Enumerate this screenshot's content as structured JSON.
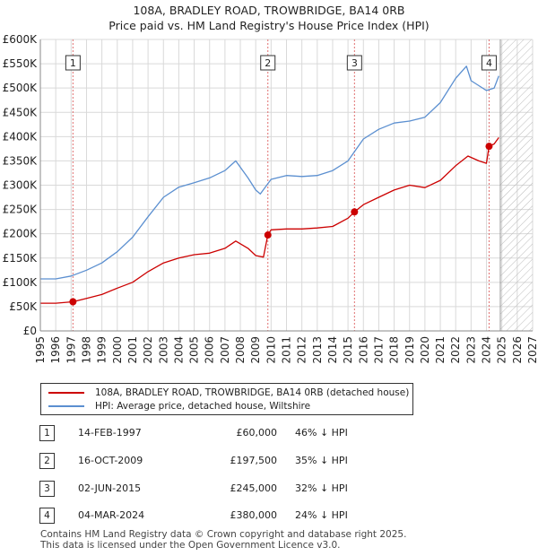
{
  "title": {
    "line1": "108A, BRADLEY ROAD, TROWBRIDGE, BA14 0RB",
    "line2": "Price paid vs. HM Land Registry's House Price Index (HPI)"
  },
  "chart_data": {
    "type": "line",
    "title": "108A, BRADLEY ROAD, TROWBRIDGE, BA14 0RB — Price paid vs. HM Land Registry's House Price Index (HPI)",
    "xlim": [
      1995,
      2027
    ],
    "ylim": [
      0,
      600000
    ],
    "x_ticks": [
      "1995",
      "1996",
      "1997",
      "1998",
      "1999",
      "2000",
      "2001",
      "2002",
      "2003",
      "2004",
      "2005",
      "2006",
      "2007",
      "2008",
      "2009",
      "2010",
      "2011",
      "2012",
      "2013",
      "2014",
      "2015",
      "2016",
      "2017",
      "2018",
      "2019",
      "2020",
      "2021",
      "2022",
      "2023",
      "2024",
      "2025",
      "2026",
      "2027"
    ],
    "y_ticks": [
      {
        "value": 0,
        "label": "£0"
      },
      {
        "value": 50000,
        "label": "£50K"
      },
      {
        "value": 100000,
        "label": "£100K"
      },
      {
        "value": 150000,
        "label": "£150K"
      },
      {
        "value": 200000,
        "label": "£200K"
      },
      {
        "value": 250000,
        "label": "£250K"
      },
      {
        "value": 300000,
        "label": "£300K"
      },
      {
        "value": 350000,
        "label": "£350K"
      },
      {
        "value": 400000,
        "label": "£400K"
      },
      {
        "value": 450000,
        "label": "£450K"
      },
      {
        "value": 500000,
        "label": "£500K"
      },
      {
        "value": 550000,
        "label": "£550K"
      },
      {
        "value": 600000,
        "label": "£600K"
      }
    ],
    "grid": true,
    "hatch_from_year": 2024.9,
    "series": [
      {
        "name": "108A, BRADLEY ROAD, TROWBRIDGE, BA14 0RB (detached house)",
        "color": "#cc0000",
        "x": [
          1995.0,
          1996.0,
          1997.12,
          1998.0,
          1999.0,
          2000.0,
          2001.0,
          2002.0,
          2003.0,
          2004.0,
          2005.0,
          2006.0,
          2007.0,
          2007.7,
          2008.5,
          2009.0,
          2009.5,
          2009.79,
          2010.0,
          2011.0,
          2012.0,
          2013.0,
          2014.0,
          2015.0,
          2015.42,
          2016.0,
          2017.0,
          2018.0,
          2019.0,
          2020.0,
          2021.0,
          2022.0,
          2022.8,
          2023.5,
          2024.0,
          2024.17,
          2024.5,
          2024.8
        ],
        "y": [
          57000,
          57000,
          60000,
          67000,
          75000,
          88000,
          100000,
          122000,
          140000,
          150000,
          157000,
          160000,
          170000,
          185000,
          170000,
          155000,
          152000,
          197500,
          208000,
          210000,
          210000,
          212000,
          215000,
          232000,
          245000,
          260000,
          275000,
          290000,
          300000,
          295000,
          310000,
          340000,
          360000,
          350000,
          345000,
          380000,
          385000,
          398000
        ]
      },
      {
        "name": "HPI: Average price, detached house, Wiltshire",
        "color": "#5b8fd0",
        "x": [
          1995.0,
          1996.0,
          1997.0,
          1998.0,
          1999.0,
          2000.0,
          2001.0,
          2002.0,
          2003.0,
          2004.0,
          2005.0,
          2006.0,
          2007.0,
          2007.7,
          2008.5,
          2009.0,
          2009.3,
          2010.0,
          2011.0,
          2012.0,
          2013.0,
          2014.0,
          2015.0,
          2016.0,
          2017.0,
          2018.0,
          2019.0,
          2020.0,
          2021.0,
          2022.0,
          2022.7,
          2023.0,
          2023.5,
          2024.0,
          2024.5,
          2024.8
        ],
        "y": [
          107000,
          107000,
          113000,
          125000,
          140000,
          163000,
          193000,
          235000,
          275000,
          296000,
          305000,
          315000,
          330000,
          350000,
          315000,
          290000,
          282000,
          312000,
          320000,
          318000,
          320000,
          330000,
          350000,
          395000,
          415000,
          428000,
          432000,
          440000,
          470000,
          520000,
          545000,
          515000,
          505000,
          495000,
          500000,
          525000
        ]
      }
    ],
    "sales": [
      {
        "label": "1",
        "x": 1997.12,
        "price": 60000,
        "date": "14-FEB-1997",
        "price_text": "£60,000",
        "hpi_text": "46% ↓ HPI"
      },
      {
        "label": "2",
        "x": 2009.79,
        "price": 197500,
        "date": "16-OCT-2009",
        "price_text": "£197,500",
        "hpi_text": "35% ↓ HPI"
      },
      {
        "label": "3",
        "x": 2015.42,
        "price": 245000,
        "date": "02-JUN-2015",
        "price_text": "£245,000",
        "hpi_text": "32% ↓ HPI"
      },
      {
        "label": "4",
        "x": 2024.17,
        "price": 380000,
        "date": "04-MAR-2024",
        "price_text": "£380,000",
        "hpi_text": "24% ↓ HPI"
      }
    ],
    "marker_label_value": 552000
  },
  "legend": {
    "property_label": "108A, BRADLEY ROAD, TROWBRIDGE, BA14 0RB (detached house)",
    "hpi_label": "HPI: Average price, detached house, Wiltshire",
    "property_color": "#cc0000",
    "hpi_color": "#5b8fd0"
  },
  "footer": {
    "line1": "Contains HM Land Registry data © Crown copyright and database right 2025.",
    "line2": "This data is licensed under the Open Government Licence v3.0."
  }
}
